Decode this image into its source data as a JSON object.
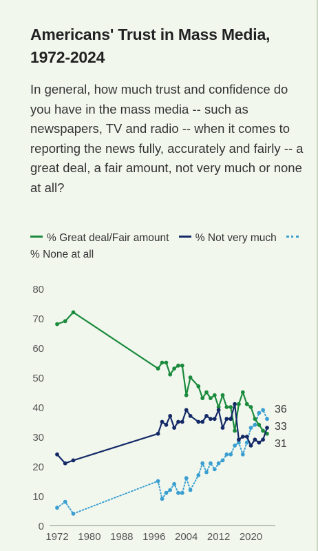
{
  "header": {
    "title_line1": "Americans' Trust in Mass Media,",
    "title_line2": "1972-2024",
    "subtitle": "In general, how much trust and confidence do you have in the mass media -- such as newspapers, TV and radio -- when it comes to reporting the news fully, accurately and fairly -- a great deal, a fair amount, not very much or none at all?"
  },
  "colors": {
    "great_deal": "#1a8a3c",
    "not_very_much": "#142a66",
    "none_at_all": "#3a9fd0"
  },
  "chart_data": {
    "type": "line",
    "x_ticks": [
      "1972",
      "1980",
      "1988",
      "1996",
      "2004",
      "2012",
      "2020"
    ],
    "y_ticks": [
      "0",
      "10",
      "20",
      "30",
      "40",
      "50",
      "60",
      "70",
      "80"
    ],
    "ylim": [
      0,
      80
    ],
    "xlim": [
      1972,
      2024
    ],
    "grid": false,
    "legend_position": "top",
    "series": [
      {
        "name": "% Great deal/Fair amount",
        "key": "great_deal",
        "style": "solid",
        "end_label": "31",
        "points": [
          [
            1972,
            68
          ],
          [
            1974,
            69
          ],
          [
            1976,
            72
          ],
          [
            1997,
            53
          ],
          [
            1998,
            55
          ],
          [
            1999,
            55
          ],
          [
            2000,
            51
          ],
          [
            2001,
            53
          ],
          [
            2002,
            54
          ],
          [
            2003,
            54
          ],
          [
            2004,
            44
          ],
          [
            2005,
            50
          ],
          [
            2007,
            47
          ],
          [
            2008,
            43
          ],
          [
            2009,
            45
          ],
          [
            2010,
            43
          ],
          [
            2011,
            44
          ],
          [
            2012,
            40
          ],
          [
            2013,
            44
          ],
          [
            2014,
            40
          ],
          [
            2015,
            40
          ],
          [
            2016,
            32
          ],
          [
            2017,
            41
          ],
          [
            2018,
            45
          ],
          [
            2019,
            41
          ],
          [
            2020,
            40
          ],
          [
            2021,
            36
          ],
          [
            2022,
            34
          ],
          [
            2023,
            32
          ],
          [
            2024,
            31
          ]
        ]
      },
      {
        "name": "% Not very much",
        "key": "not_very_much",
        "style": "solid",
        "end_label": "33",
        "points": [
          [
            1972,
            24
          ],
          [
            1974,
            21
          ],
          [
            1976,
            22
          ],
          [
            1997,
            31
          ],
          [
            1998,
            35
          ],
          [
            1999,
            34
          ],
          [
            2000,
            37
          ],
          [
            2001,
            33
          ],
          [
            2002,
            35
          ],
          [
            2003,
            35
          ],
          [
            2004,
            39
          ],
          [
            2005,
            37
          ],
          [
            2007,
            35
          ],
          [
            2008,
            35
          ],
          [
            2009,
            37
          ],
          [
            2010,
            36
          ],
          [
            2011,
            36
          ],
          [
            2012,
            39
          ],
          [
            2013,
            33
          ],
          [
            2014,
            36
          ],
          [
            2015,
            36
          ],
          [
            2016,
            41
          ],
          [
            2017,
            29
          ],
          [
            2018,
            30
          ],
          [
            2019,
            30
          ],
          [
            2020,
            27
          ],
          [
            2021,
            29
          ],
          [
            2022,
            28
          ],
          [
            2023,
            29
          ],
          [
            2024,
            33
          ]
        ]
      },
      {
        "name": "% None at all",
        "key": "none_at_all",
        "style": "dotted",
        "end_label": "36",
        "points": [
          [
            1972,
            6
          ],
          [
            1974,
            8
          ],
          [
            1976,
            4
          ],
          [
            1997,
            15
          ],
          [
            1998,
            9
          ],
          [
            1999,
            11
          ],
          [
            2000,
            12
          ],
          [
            2001,
            14
          ],
          [
            2002,
            11
          ],
          [
            2003,
            11
          ],
          [
            2004,
            16
          ],
          [
            2005,
            12
          ],
          [
            2007,
            17
          ],
          [
            2008,
            21
          ],
          [
            2009,
            18
          ],
          [
            2010,
            21
          ],
          [
            2011,
            19
          ],
          [
            2012,
            21
          ],
          [
            2013,
            22
          ],
          [
            2014,
            24
          ],
          [
            2015,
            24
          ],
          [
            2016,
            27
          ],
          [
            2017,
            28
          ],
          [
            2018,
            24
          ],
          [
            2019,
            28
          ],
          [
            2020,
            33
          ],
          [
            2021,
            34
          ],
          [
            2022,
            38
          ],
          [
            2023,
            39
          ],
          [
            2024,
            36
          ]
        ]
      }
    ]
  }
}
